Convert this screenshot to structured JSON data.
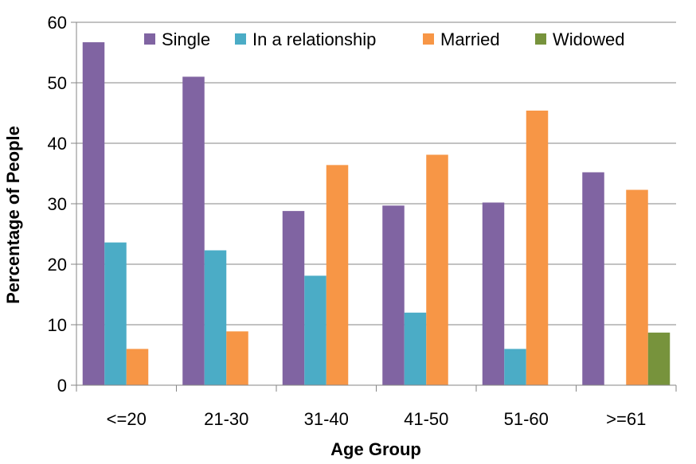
{
  "chart_data": {
    "type": "bar",
    "xlabel": "Age Group",
    "ylabel": "Percentage of People",
    "ylim": [
      0,
      60
    ],
    "yticks": [
      0,
      10,
      20,
      30,
      40,
      50,
      60
    ],
    "grid": true,
    "legend_position": "top",
    "categories": [
      "<=20",
      "21-30",
      "31-40",
      "41-50",
      "51-60",
      ">=61"
    ],
    "series": [
      {
        "name": "Single",
        "color": "#8064A2",
        "values": [
          56.7,
          51.0,
          28.8,
          29.7,
          30.2,
          35.2
        ]
      },
      {
        "name": "In a relationship",
        "color": "#4BACC6",
        "values": [
          23.6,
          22.3,
          18.1,
          12.0,
          6.0,
          0
        ]
      },
      {
        "name": "Married",
        "color": "#F79646",
        "values": [
          6.0,
          8.9,
          36.4,
          38.1,
          45.4,
          32.3
        ]
      },
      {
        "name": "Widowed",
        "color": "#77933C",
        "values": [
          0,
          0,
          0,
          0,
          0,
          8.7
        ]
      }
    ]
  }
}
